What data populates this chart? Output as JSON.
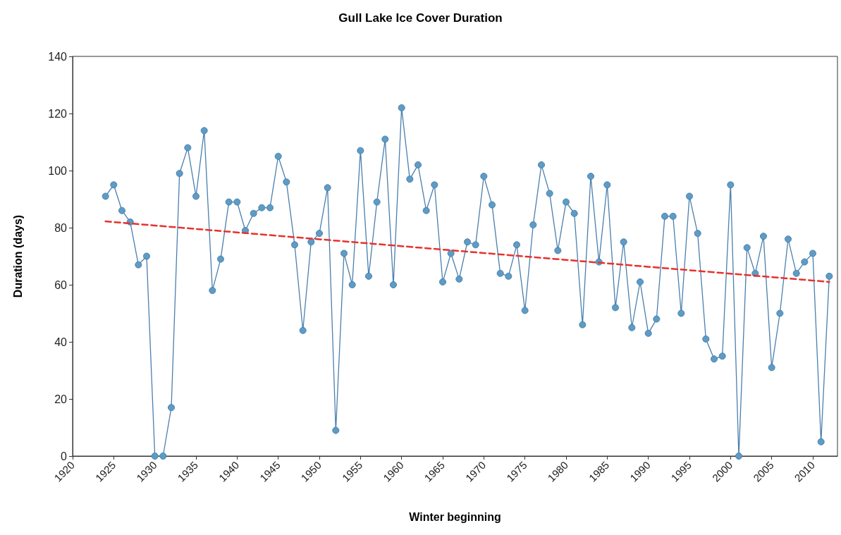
{
  "chart_data": {
    "type": "line",
    "title": "Gull Lake Ice Cover Duration",
    "xlabel": "Winter beginning",
    "ylabel": "Duration (days)",
    "x": [
      1924,
      1925,
      1926,
      1927,
      1928,
      1929,
      1930,
      1931,
      1932,
      1933,
      1934,
      1935,
      1936,
      1937,
      1938,
      1939,
      1940,
      1941,
      1942,
      1943,
      1944,
      1945,
      1946,
      1947,
      1948,
      1949,
      1950,
      1951,
      1952,
      1953,
      1954,
      1955,
      1956,
      1957,
      1958,
      1959,
      1960,
      1961,
      1962,
      1963,
      1964,
      1965,
      1966,
      1967,
      1968,
      1969,
      1970,
      1971,
      1972,
      1973,
      1974,
      1975,
      1976,
      1977,
      1978,
      1979,
      1980,
      1981,
      1982,
      1983,
      1984,
      1985,
      1986,
      1987,
      1988,
      1989,
      1990,
      1991,
      1992,
      1993,
      1994,
      1995,
      1996,
      1997,
      1998,
      1999,
      2000,
      2001,
      2002,
      2003,
      2004,
      2005,
      2006,
      2007,
      2008,
      2009,
      2010,
      2011,
      2012
    ],
    "series": [
      {
        "color": "#4a7fae",
        "values": [
          91,
          95,
          86,
          82,
          67,
          70,
          0,
          0,
          17,
          99,
          108,
          91,
          114,
          58,
          69,
          89,
          89,
          79,
          85,
          87,
          87,
          105,
          96,
          74,
          44,
          75,
          78,
          94,
          9,
          71,
          60,
          107,
          63,
          89,
          111,
          60,
          122,
          97,
          102,
          86,
          95,
          61,
          71,
          62,
          75,
          74,
          98,
          88,
          64,
          63,
          74,
          51,
          81,
          102,
          92,
          72,
          89,
          85,
          46,
          98,
          68,
          95,
          52,
          75,
          45,
          61,
          43,
          48,
          84,
          84,
          50,
          91,
          78,
          41,
          34,
          35,
          95,
          0,
          73,
          64,
          77,
          31,
          50,
          76,
          64,
          68,
          71,
          5,
          63
        ]
      },
      {
        "type": "line",
        "color": "#e8312c",
        "x": [
          1924,
          2012
        ],
        "values": [
          82.2,
          61
        ],
        "marker": "none",
        "line_style": "dashed"
      }
    ],
    "xlim": [
      1920,
      2013
    ],
    "xticks": [
      1920,
      1925,
      1930,
      1935,
      1940,
      1945,
      1950,
      1955,
      1960,
      1965,
      1970,
      1975,
      1980,
      1985,
      1990,
      1995,
      2000,
      2005,
      2010
    ],
    "ylim": [
      0,
      140
    ],
    "yticks": [
      0,
      20,
      40,
      60,
      80,
      100,
      120,
      140
    ],
    "marker": "circle",
    "line_style": "solid",
    "grid": false
  }
}
